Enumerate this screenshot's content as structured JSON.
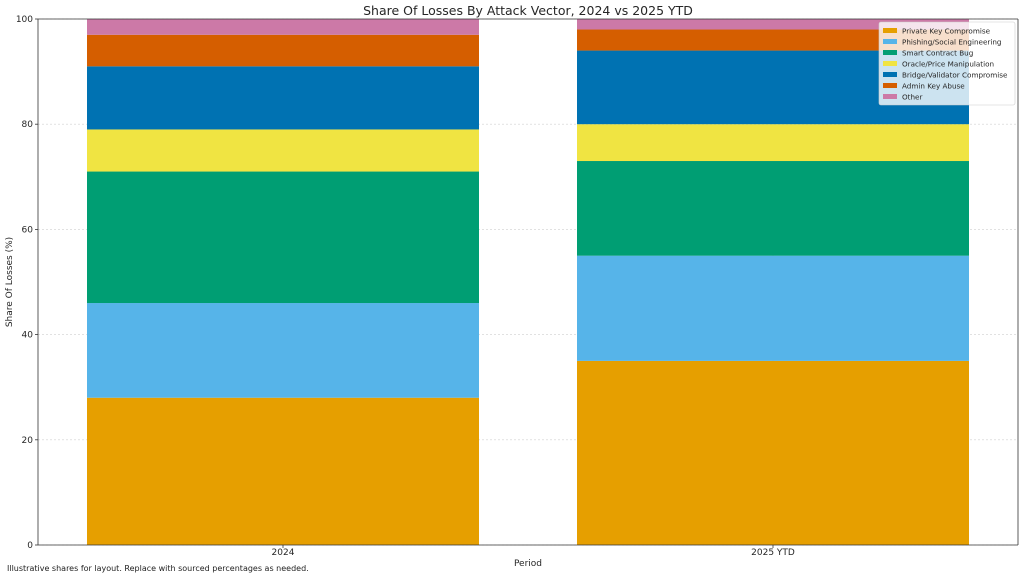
{
  "chart_data": {
    "type": "bar",
    "stacked": true,
    "title": "Share Of Losses By Attack Vector, 2024 vs 2025 YTD",
    "xlabel": "Period",
    "ylabel": "Share Of Losses (%)",
    "ylim": [
      0,
      100
    ],
    "yticks": [
      0,
      20,
      40,
      60,
      80,
      100
    ],
    "grid": true,
    "legend_position": "top-right",
    "categories": [
      "2024",
      "2025 YTD"
    ],
    "series": [
      {
        "name": "Private Key Compromise",
        "color": "#E69F00",
        "values": [
          28,
          35
        ]
      },
      {
        "name": "Phishing/Social Engineering",
        "color": "#56B4E9",
        "values": [
          18,
          20
        ]
      },
      {
        "name": "Smart Contract Bug",
        "color": "#009E73",
        "values": [
          25,
          18
        ]
      },
      {
        "name": "Oracle/Price Manipulation",
        "color": "#F0E442",
        "values": [
          8,
          7
        ]
      },
      {
        "name": "Bridge/Validator Compromise",
        "color": "#0072B2",
        "values": [
          12,
          14
        ]
      },
      {
        "name": "Admin Key Abuse",
        "color": "#D55E00",
        "values": [
          6,
          4
        ]
      },
      {
        "name": "Other",
        "color": "#CC79A7",
        "values": [
          3,
          2
        ]
      }
    ]
  },
  "footnote": "Illustrative shares for layout. Replace with sourced percentages as needed."
}
